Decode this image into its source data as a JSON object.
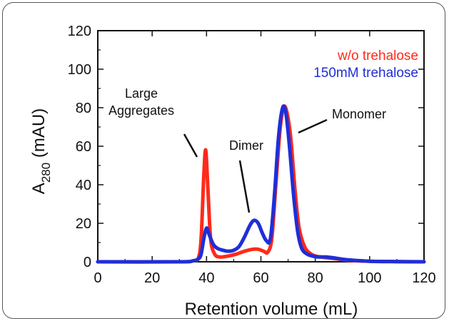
{
  "chart_data": {
    "type": "line",
    "title": "",
    "xlabel": "Retention volume  (mL)",
    "ylabel_main": "A",
    "ylabel_sub": "280",
    "ylabel_unit": "(mAU)",
    "xlim": [
      0,
      120
    ],
    "ylim": [
      0,
      120
    ],
    "xticks": [
      "0",
      "20",
      "40",
      "60",
      "80",
      "100",
      "120"
    ],
    "yticks": [
      "0",
      "20",
      "40",
      "60",
      "80",
      "100",
      "120"
    ],
    "grid": false,
    "legend_position": "top-right",
    "series": [
      {
        "name": "w/o trehalose",
        "color": "#ff2a1a",
        "x": [
          0,
          30,
          35,
          37,
          38,
          39,
          39.7,
          40.5,
          41.5,
          43,
          45,
          48,
          51,
          54,
          57,
          59,
          61,
          62.5,
          64,
          65.5,
          67,
          68.3,
          69.5,
          71,
          72.5,
          74,
          76,
          78,
          80,
          82,
          85,
          88,
          92,
          100,
          110,
          120
        ],
        "values": [
          0,
          0,
          0.5,
          2,
          12,
          45,
          58,
          38,
          12,
          4,
          2.5,
          3,
          4,
          5.5,
          6.5,
          6.5,
          5.5,
          5,
          12,
          40,
          68,
          80,
          78,
          64,
          38,
          18,
          8,
          4.5,
          3,
          2.5,
          2,
          1.5,
          0.8,
          0.3,
          0.1,
          0
        ]
      },
      {
        "name": "150mM trehalose",
        "color": "#1f2ed8",
        "x": [
          0,
          30,
          35,
          37,
          38,
          39,
          40,
          41,
          42.5,
          44,
          46,
          48,
          50,
          52,
          54,
          56,
          57.5,
          59,
          60.5,
          62,
          63.5,
          65,
          66.5,
          68,
          69.2,
          70.5,
          72,
          73.5,
          75,
          77,
          79,
          81,
          84,
          87,
          92,
          100,
          110,
          120
        ],
        "values": [
          0,
          0,
          0.5,
          1.5,
          4,
          12,
          17.5,
          14,
          9,
          7,
          6,
          5.5,
          6,
          8,
          13,
          19,
          21.5,
          20,
          15,
          11,
          12,
          35,
          65,
          80,
          77,
          60,
          35,
          16,
          7,
          4,
          3,
          2.5,
          2.5,
          2,
          1,
          0.3,
          0.1,
          0
        ]
      }
    ],
    "annotations": [
      {
        "lines": [
          "Large",
          "Aggregates"
        ],
        "target_x": 39.7,
        "target_y": 58
      },
      {
        "lines": [
          "Dimer"
        ],
        "target_x": 57,
        "target_y": 21.5
      },
      {
        "lines": [
          "Monomer"
        ],
        "target_x": 70,
        "target_y": 77
      }
    ]
  }
}
